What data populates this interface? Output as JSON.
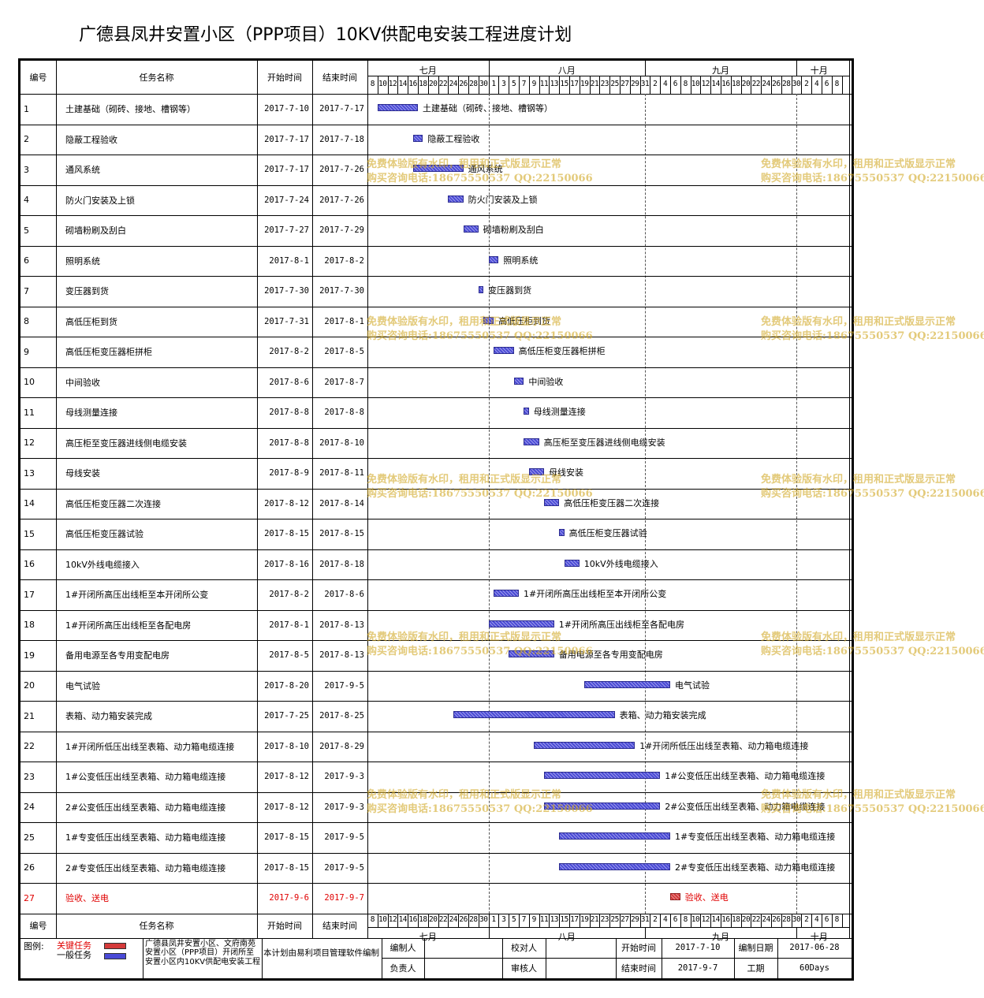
{
  "title": "广德县凤井安置小区（PPP项目）10KV供配电安装工程进度计划",
  "columns": {
    "id": "编号",
    "name": "任务名称",
    "start": "开始时间",
    "end": "结束时间"
  },
  "months": [
    {
      "label": "七月",
      "startDay": 8,
      "endDay": 31
    },
    {
      "label": "八月",
      "startDay": 32,
      "endDay": 62
    },
    {
      "label": "九月",
      "startDay": 63,
      "endDay": 92
    },
    {
      "label": "十月",
      "startDay": 93,
      "endDay": 101
    }
  ],
  "day_labels": [
    "8",
    "10",
    "12",
    "14",
    "16",
    "18",
    "20",
    "22",
    "24",
    "26",
    "28",
    "30",
    "1",
    "3",
    "5",
    "7",
    "9",
    "11",
    "13",
    "15",
    "17",
    "19",
    "21",
    "23",
    "25",
    "27",
    "29",
    "31",
    "2",
    "4",
    "6",
    "8",
    "10",
    "12",
    "14",
    "16",
    "18",
    "20",
    "22",
    "24",
    "26",
    "28",
    "30",
    "2",
    "4",
    "6",
    "8"
  ],
  "colors": {
    "normal_bar": "#4a4ad6",
    "critical_bar": "#d43a3a",
    "critical_text": "#e00000",
    "watermark": "#d2aa28"
  },
  "tasks": [
    {
      "id": "1",
      "name": "土建基础（砌砖、接地、槽钢等）",
      "start": "2017-7-10",
      "end": "2017-7-17",
      "s": 10,
      "e": 17
    },
    {
      "id": "2",
      "name": "隐蔽工程验收",
      "start": "2017-7-17",
      "end": "2017-7-18",
      "s": 17,
      "e": 18
    },
    {
      "id": "3",
      "name": "通风系统",
      "start": "2017-7-17",
      "end": "2017-7-26",
      "s": 17,
      "e": 26
    },
    {
      "id": "4",
      "name": "防火门安装及上锁",
      "start": "2017-7-24",
      "end": "2017-7-26",
      "s": 24,
      "e": 26
    },
    {
      "id": "5",
      "name": "砌墙粉刷及刮白",
      "start": "2017-7-27",
      "end": "2017-7-29",
      "s": 27,
      "e": 29
    },
    {
      "id": "6",
      "name": "照明系统",
      "start": "2017-8-1",
      "end": "2017-8-2",
      "s": 32,
      "e": 33
    },
    {
      "id": "7",
      "name": "变压器到货",
      "start": "2017-7-30",
      "end": "2017-7-30",
      "s": 30,
      "e": 30
    },
    {
      "id": "8",
      "name": "高低压柜到货",
      "start": "2017-7-31",
      "end": "2017-8-1",
      "s": 31,
      "e": 32
    },
    {
      "id": "9",
      "name": "高低压柜变压器柜拼柜",
      "start": "2017-8-2",
      "end": "2017-8-5",
      "s": 33,
      "e": 36
    },
    {
      "id": "10",
      "name": "中间验收",
      "start": "2017-8-6",
      "end": "2017-8-7",
      "s": 37,
      "e": 38
    },
    {
      "id": "11",
      "name": "母线测量连接",
      "start": "2017-8-8",
      "end": "2017-8-8",
      "s": 39,
      "e": 39
    },
    {
      "id": "12",
      "name": "高压柜至变压器进线侧电缆安装",
      "start": "2017-8-8",
      "end": "2017-8-10",
      "s": 39,
      "e": 41
    },
    {
      "id": "13",
      "name": "母线安装",
      "start": "2017-8-9",
      "end": "2017-8-11",
      "s": 40,
      "e": 42
    },
    {
      "id": "14",
      "name": "高低压柜变压器二次连接",
      "start": "2017-8-12",
      "end": "2017-8-14",
      "s": 43,
      "e": 45
    },
    {
      "id": "15",
      "name": "高低压柜变压器试验",
      "start": "2017-8-15",
      "end": "2017-8-15",
      "s": 46,
      "e": 46
    },
    {
      "id": "16",
      "name": "10kV外线电缆接入",
      "start": "2017-8-16",
      "end": "2017-8-18",
      "s": 47,
      "e": 49
    },
    {
      "id": "17",
      "name": "1#开闭所高压出线柜至本开闭所公变",
      "start": "2017-8-2",
      "end": "2017-8-6",
      "s": 33,
      "e": 37
    },
    {
      "id": "18",
      "name": "1#开闭所高压出线柜至各配电房",
      "start": "2017-8-1",
      "end": "2017-8-13",
      "s": 32,
      "e": 44
    },
    {
      "id": "19",
      "name": "备用电源至各专用变配电房",
      "start": "2017-8-5",
      "end": "2017-8-13",
      "s": 36,
      "e": 44
    },
    {
      "id": "20",
      "name": "电气试验",
      "start": "2017-8-20",
      "end": "2017-9-5",
      "s": 51,
      "e": 67
    },
    {
      "id": "21",
      "name": "表箱、动力箱安装完成",
      "start": "2017-7-25",
      "end": "2017-8-25",
      "s": 25,
      "e": 56
    },
    {
      "id": "22",
      "name": "1#开闭所低压出线至表箱、动力箱电缆连接",
      "start": "2017-8-10",
      "end": "2017-8-29",
      "s": 41,
      "e": 60
    },
    {
      "id": "23",
      "name": "1#公变低压出线至表箱、动力箱电缆连接",
      "start": "2017-8-12",
      "end": "2017-9-3",
      "s": 43,
      "e": 65
    },
    {
      "id": "24",
      "name": "2#公变低压出线至表箱、动力箱电缆连接",
      "start": "2017-8-12",
      "end": "2017-9-3",
      "s": 43,
      "e": 65
    },
    {
      "id": "25",
      "name": "1#专变低压出线至表箱、动力箱电缆连接",
      "start": "2017-8-15",
      "end": "2017-9-5",
      "s": 46,
      "e": 67
    },
    {
      "id": "26",
      "name": "2#专变低压出线至表箱、动力箱电缆连接",
      "start": "2017-8-15",
      "end": "2017-9-5",
      "s": 46,
      "e": 67
    },
    {
      "id": "27",
      "name": "验收、送电",
      "start": "2017-9-6",
      "end": "2017-9-7",
      "s": 68,
      "e": 69,
      "critical": true
    }
  ],
  "watermark": {
    "line1": "免费体验版有水印，租用和正式版显示正常",
    "line2": "购买咨询电话:18675550537 QQ:22150066"
  },
  "footer": {
    "legend_label": "图例:",
    "legend_critical": "关键任务",
    "legend_normal": "一般任务",
    "project_desc": "广德县凤井安置小区、文府南苑安置小区（PPP项目）开闭所至安置小区内10KV供配电安装工程",
    "generated_by": "本计划由易利项目管理软件编制",
    "editor_label": "编制人",
    "checker_label": "校对人",
    "owner_label": "负责人",
    "reviewer_label": "审核人",
    "start_label": "开始时间",
    "start_value": "2017-7-10",
    "end_label": "结束时间",
    "end_value": "2017-9-7",
    "date_label": "编制日期",
    "date_value": "2017-06-28",
    "duration_label": "工期",
    "duration_value": "60Days"
  }
}
